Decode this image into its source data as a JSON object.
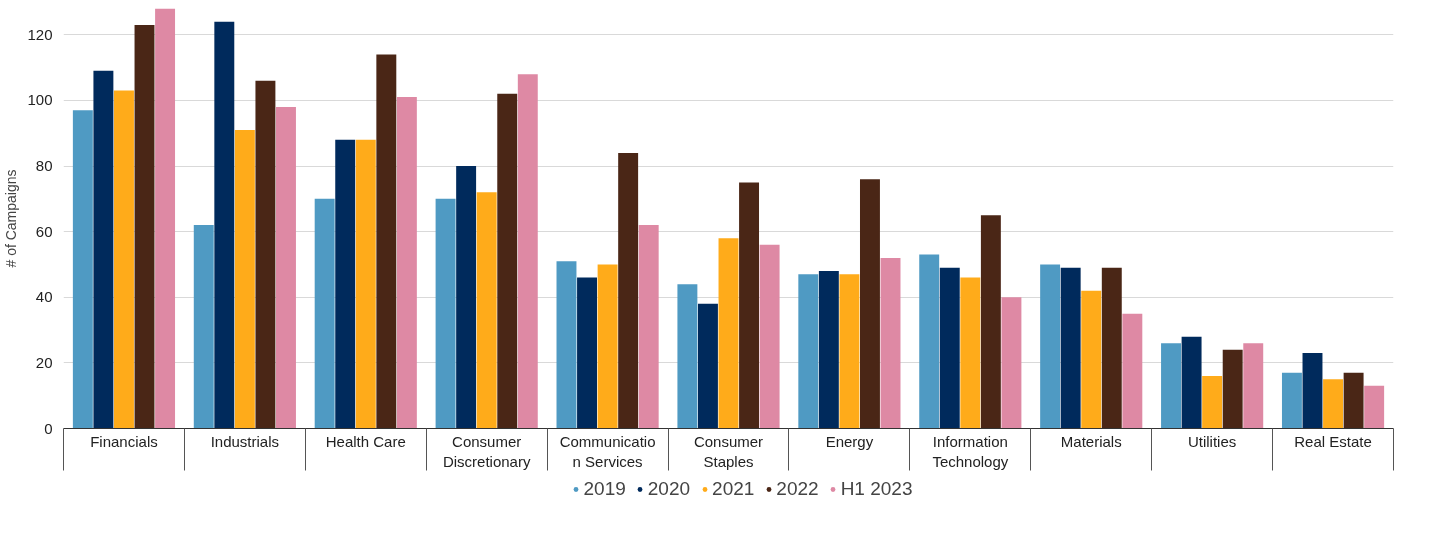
{
  "chart_data": {
    "type": "bar",
    "ylabel": "# of Campaigns",
    "categories": [
      "Financials",
      "Industrials",
      "Health Care",
      "Consumer\nDiscretionary",
      "Communicatio\nn Services",
      "Consumer\nStaples",
      "Energy",
      "Information\nTechnology",
      "Materials",
      "Utilities",
      "Real Estate"
    ],
    "series": [
      {
        "name": "2019",
        "color": "#4f9ac3",
        "values": [
          97,
          62,
          70,
          70,
          51,
          44,
          47,
          53,
          50,
          26,
          17
        ]
      },
      {
        "name": "2020",
        "color": "#002a5c",
        "values": [
          109,
          124,
          88,
          80,
          46,
          38,
          48,
          49,
          49,
          28,
          23
        ]
      },
      {
        "name": "2021",
        "color": "#ffab1a",
        "values": [
          103,
          91,
          88,
          72,
          50,
          58,
          47,
          46,
          42,
          16,
          15
        ]
      },
      {
        "name": "2022",
        "color": "#4a2616",
        "values": [
          123,
          106,
          114,
          102,
          84,
          75,
          76,
          65,
          49,
          24,
          17
        ]
      },
      {
        "name": "H1 2023",
        "color": "#de89a4",
        "values": [
          128,
          98,
          101,
          108,
          62,
          56,
          52,
          40,
          35,
          26,
          13
        ]
      }
    ],
    "ylim": [
      0,
      128
    ],
    "yticks": [
      0,
      20,
      40,
      60,
      80,
      100,
      120
    ],
    "grid": "y",
    "legend": "bottom"
  }
}
